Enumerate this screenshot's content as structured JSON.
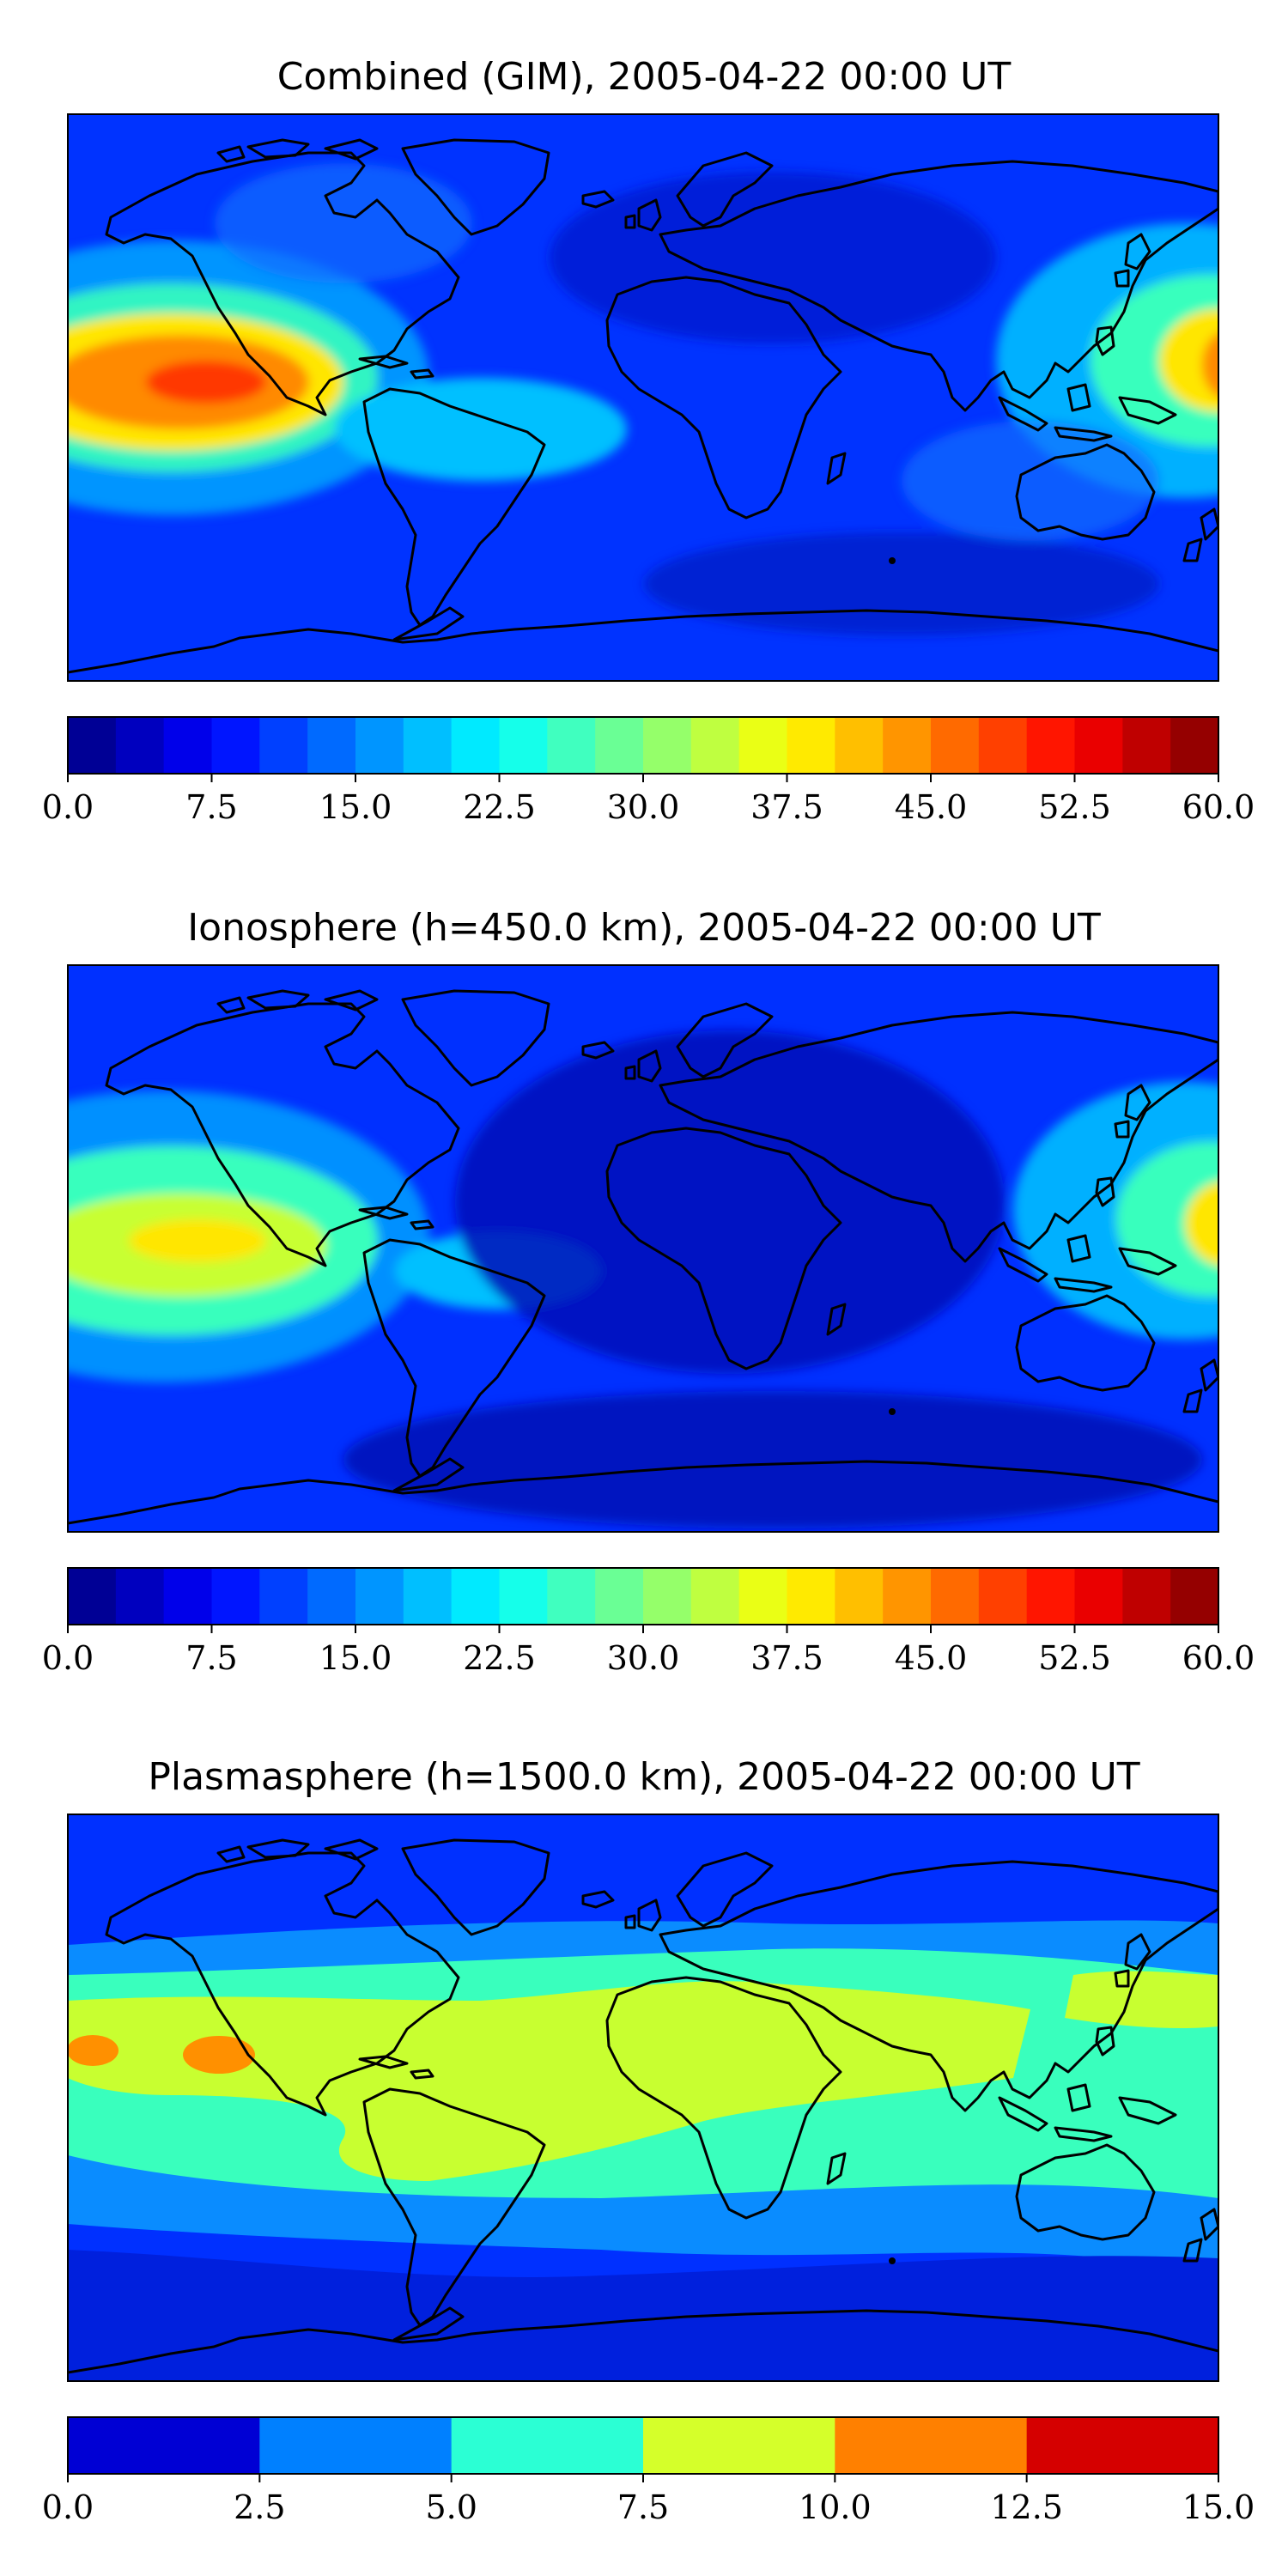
{
  "panels": [
    {
      "title": "Combined (GIM), 2005-04-22 00:00 UT",
      "variant": "combined",
      "colorbar": {
        "min": 0,
        "max": 60,
        "levels": 24,
        "ticks": [
          "0.0",
          "7.5",
          "15.0",
          "22.5",
          "30.0",
          "37.5",
          "45.0",
          "52.5",
          "60.0"
        ]
      }
    },
    {
      "title": "Ionosphere  (h=450.0 km), 2005-04-22 00:00 UT",
      "variant": "ionosphere",
      "colorbar": {
        "min": 0,
        "max": 60,
        "levels": 24,
        "ticks": [
          "0.0",
          "7.5",
          "15.0",
          "22.5",
          "30.0",
          "37.5",
          "45.0",
          "52.5",
          "60.0"
        ]
      }
    },
    {
      "title": "Plasmasphere (h=1500.0 km), 2005-04-22 00:00 UT",
      "variant": "plasmasphere",
      "colorbar": {
        "min": 0,
        "max": 15,
        "levels": 6,
        "ticks": [
          "0.0",
          "2.5",
          "5.0",
          "7.5",
          "10.0",
          "12.5",
          "15.0"
        ]
      }
    }
  ],
  "colors": {
    "colormap": "jet",
    "coastline": "#000000"
  }
}
